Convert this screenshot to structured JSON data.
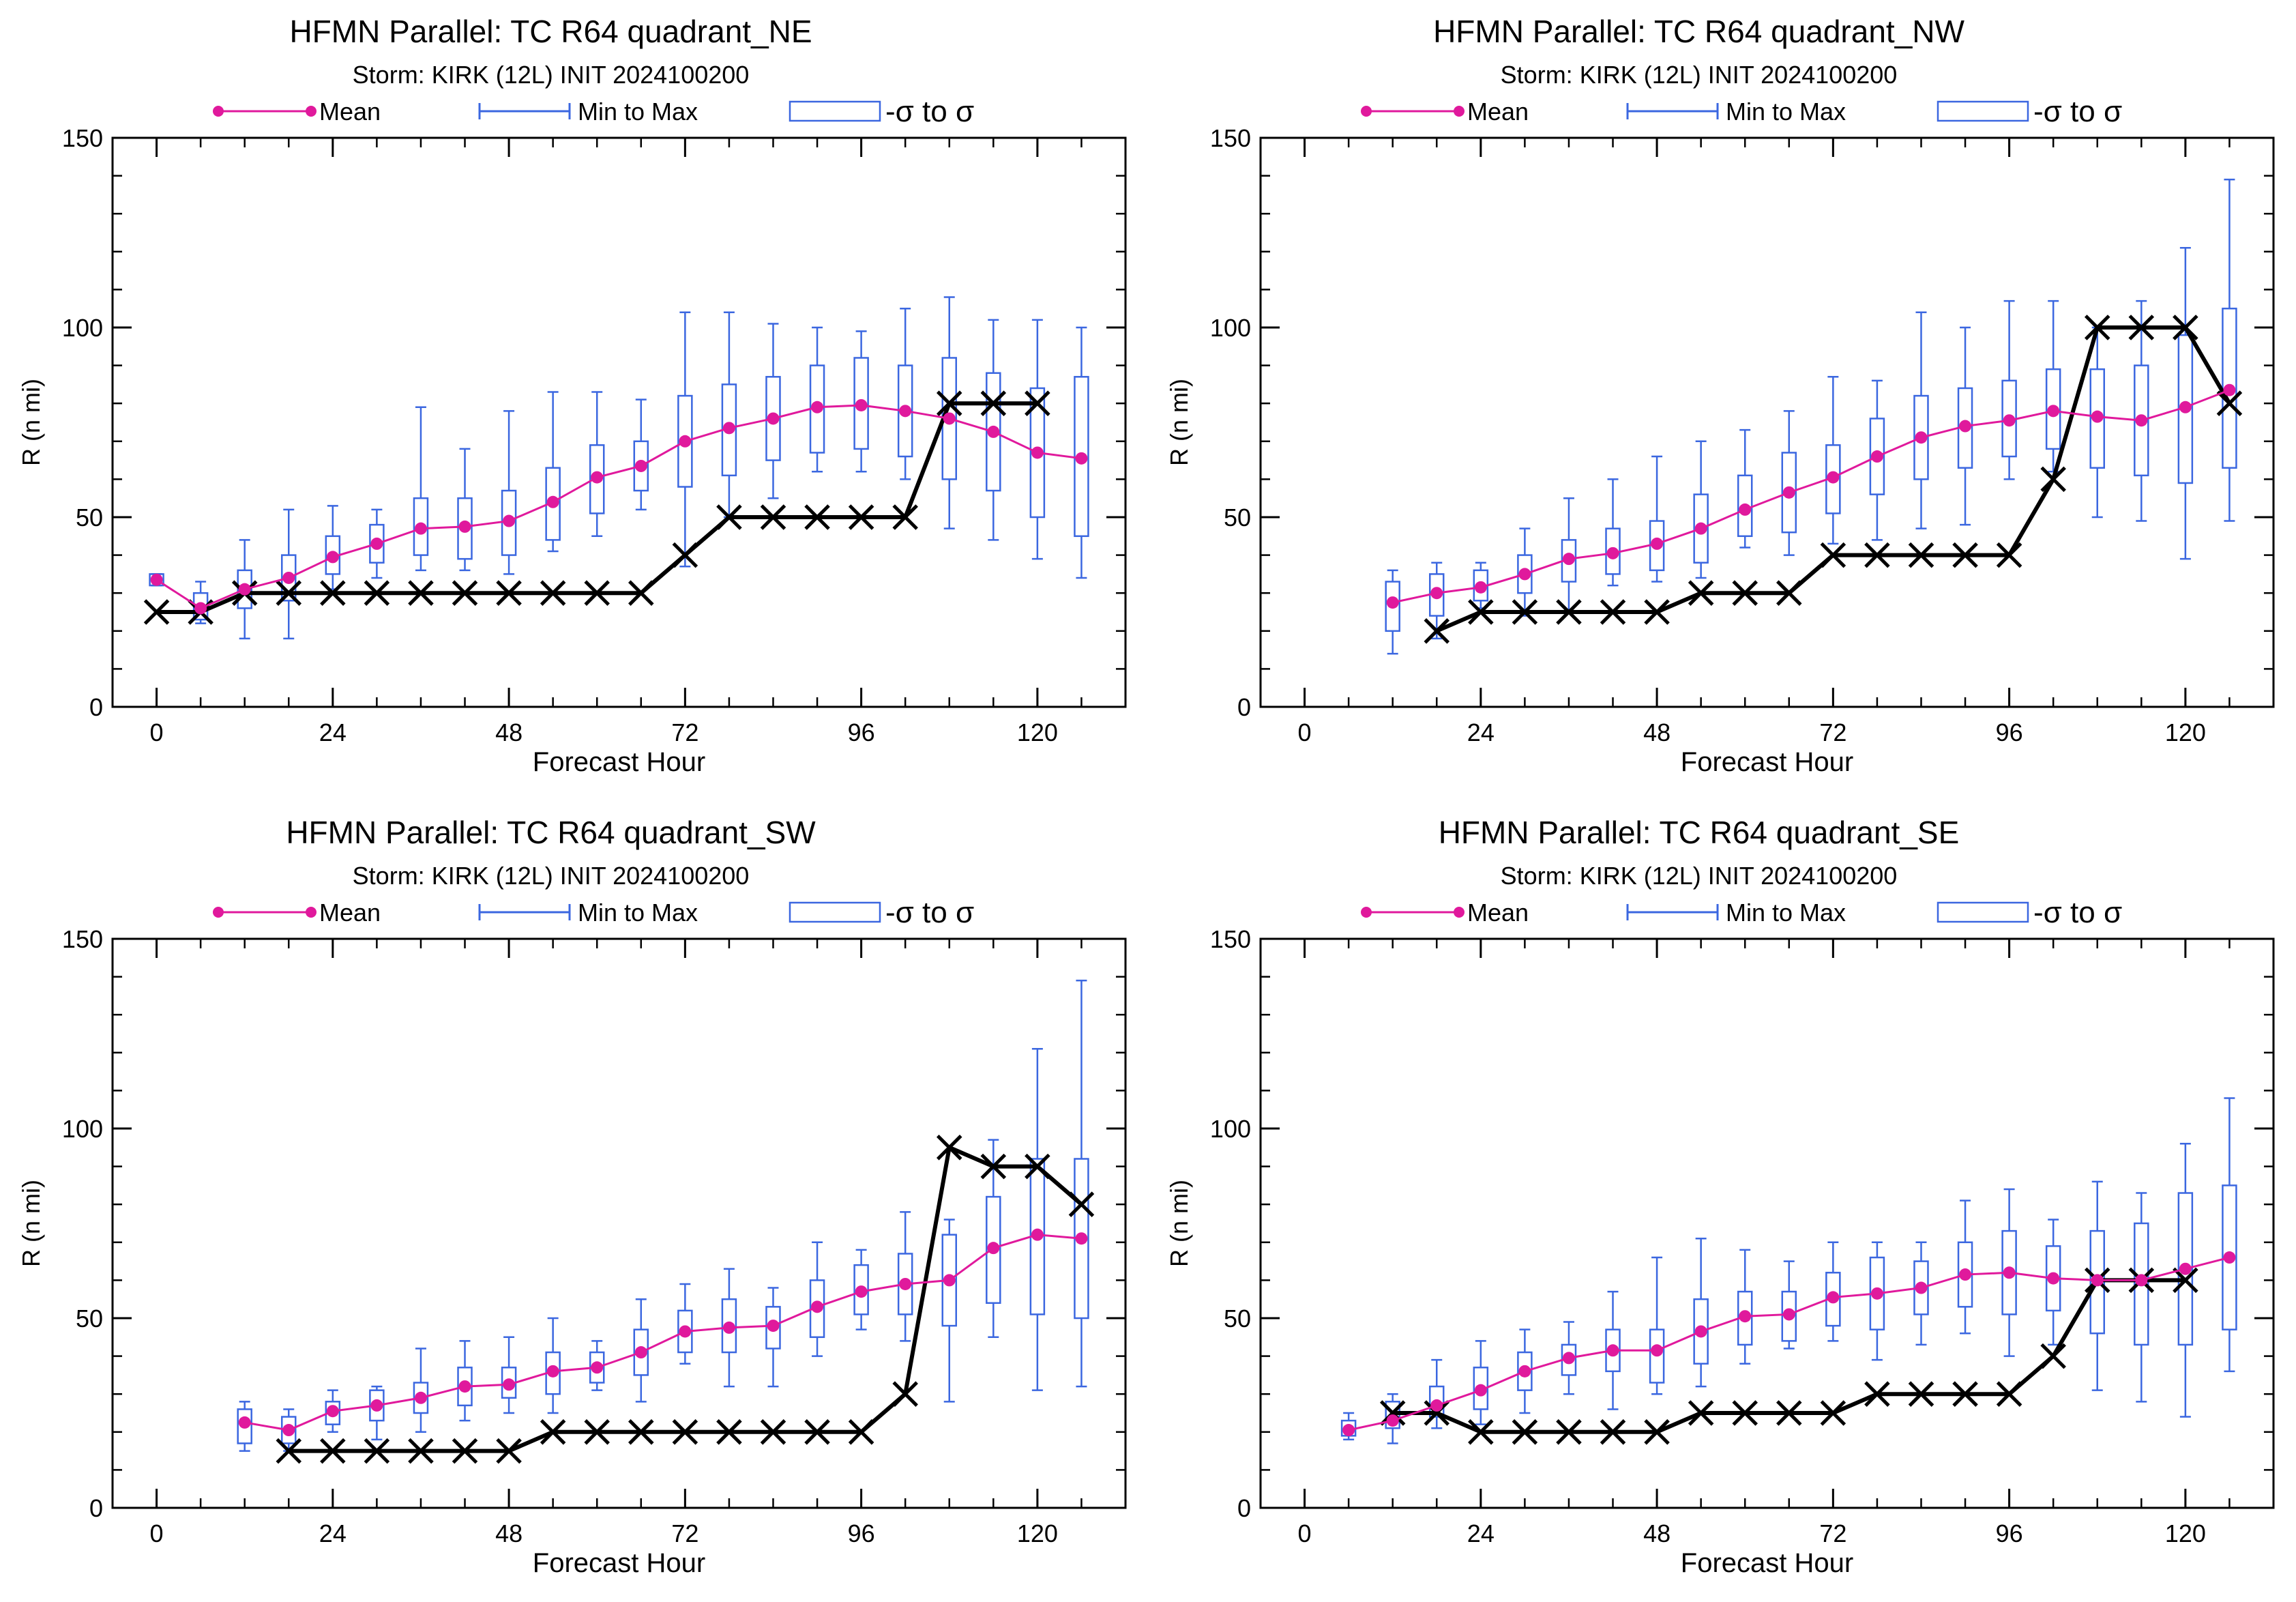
{
  "colors": {
    "mean": "#e0199c",
    "minmax": "#3b67e0",
    "box": "#3b67e0",
    "best_track": "#000000",
    "axis": "#000000",
    "background": "#ffffff"
  },
  "legend": {
    "mean": "Mean",
    "minmax": "Min to Max",
    "sigma": "-σ to σ"
  },
  "chart_data": [
    {
      "type": "box-line",
      "title": "HFMN Parallel: TC  R64 quadrant_NE",
      "subtitle": "Storm: KIRK (12L) INIT 2024100200",
      "xlabel": "Forecast Hour",
      "ylabel": "R (n mi)",
      "xlim": [
        -6,
        132
      ],
      "ylim": [
        0,
        150
      ],
      "xticks": [
        0,
        24,
        48,
        72,
        96,
        120
      ],
      "yticks": [
        0,
        50,
        100,
        150
      ],
      "legend_position": "top",
      "boxes": [
        {
          "x": 0,
          "min": 32,
          "q1": 32,
          "q3": 35,
          "max": 35
        },
        {
          "x": 6,
          "min": 22,
          "q1": 23,
          "q3": 30,
          "max": 33
        },
        {
          "x": 12,
          "min": 18,
          "q1": 26,
          "q3": 36,
          "max": 44
        },
        {
          "x": 18,
          "min": 18,
          "q1": 28,
          "q3": 40,
          "max": 52
        },
        {
          "x": 24,
          "min": 31,
          "q1": 35,
          "q3": 45,
          "max": 53
        },
        {
          "x": 30,
          "min": 34,
          "q1": 38,
          "q3": 48,
          "max": 52
        },
        {
          "x": 36,
          "min": 36,
          "q1": 40,
          "q3": 55,
          "max": 79
        },
        {
          "x": 42,
          "min": 36,
          "q1": 39,
          "q3": 55,
          "max": 68
        },
        {
          "x": 48,
          "min": 35,
          "q1": 40,
          "q3": 57,
          "max": 78
        },
        {
          "x": 54,
          "min": 41,
          "q1": 44,
          "q3": 63,
          "max": 83
        },
        {
          "x": 60,
          "min": 45,
          "q1": 51,
          "q3": 69,
          "max": 83
        },
        {
          "x": 66,
          "min": 52,
          "q1": 57,
          "q3": 70,
          "max": 81
        },
        {
          "x": 72,
          "min": 37,
          "q1": 58,
          "q3": 82,
          "max": 104
        },
        {
          "x": 78,
          "min": 50,
          "q1": 61,
          "q3": 85,
          "max": 104
        },
        {
          "x": 84,
          "min": 55,
          "q1": 65,
          "q3": 87,
          "max": 101
        },
        {
          "x": 90,
          "min": 62,
          "q1": 67,
          "q3": 90,
          "max": 100
        },
        {
          "x": 96,
          "min": 62,
          "q1": 68,
          "q3": 92,
          "max": 99
        },
        {
          "x": 102,
          "min": 60,
          "q1": 66,
          "q3": 90,
          "max": 105
        },
        {
          "x": 108,
          "min": 47,
          "q1": 60,
          "q3": 92,
          "max": 108
        },
        {
          "x": 114,
          "min": 44,
          "q1": 57,
          "q3": 88,
          "max": 102
        },
        {
          "x": 120,
          "min": 39,
          "q1": 50,
          "q3": 84,
          "max": 102
        },
        {
          "x": 126,
          "min": 34,
          "q1": 45,
          "q3": 87,
          "max": 100
        }
      ],
      "mean": {
        "x": [
          0,
          6,
          12,
          18,
          24,
          30,
          36,
          42,
          48,
          54,
          60,
          66,
          72,
          78,
          84,
          90,
          96,
          102,
          108,
          114,
          120,
          126
        ],
        "y": [
          33.5,
          26,
          31,
          34,
          39.5,
          43,
          47,
          47.5,
          49,
          54,
          60.5,
          63.5,
          70,
          73.5,
          76,
          79,
          79.5,
          78,
          76,
          72.5,
          67,
          65.5
        ]
      },
      "best_track": {
        "x": [
          0,
          6,
          12,
          18,
          24,
          30,
          36,
          42,
          48,
          54,
          60,
          66,
          72,
          78,
          84,
          90,
          96,
          102,
          108,
          114,
          120
        ],
        "y": [
          25,
          25,
          30,
          30,
          30,
          30,
          30,
          30,
          30,
          30,
          30,
          30,
          40,
          50,
          50,
          50,
          50,
          50,
          80,
          80,
          80
        ]
      }
    },
    {
      "type": "box-line",
      "title": "HFMN Parallel: TC  R64 quadrant_NW",
      "subtitle": "Storm: KIRK (12L) INIT 2024100200",
      "xlabel": "Forecast Hour",
      "ylabel": "R (n mi)",
      "xlim": [
        -6,
        132
      ],
      "ylim": [
        0,
        150
      ],
      "xticks": [
        0,
        24,
        48,
        72,
        96,
        120
      ],
      "yticks": [
        0,
        50,
        100,
        150
      ],
      "legend_position": "top",
      "boxes": [
        {
          "x": 12,
          "min": 14,
          "q1": 20,
          "q3": 33,
          "max": 36
        },
        {
          "x": 18,
          "min": 18,
          "q1": 24,
          "q3": 35,
          "max": 38
        },
        {
          "x": 24,
          "min": 26,
          "q1": 28,
          "q3": 36,
          "max": 38
        },
        {
          "x": 30,
          "min": 24,
          "q1": 30,
          "q3": 40,
          "max": 47
        },
        {
          "x": 36,
          "min": 25,
          "q1": 33,
          "q3": 44,
          "max": 55
        },
        {
          "x": 42,
          "min": 32,
          "q1": 35,
          "q3": 47,
          "max": 60
        },
        {
          "x": 48,
          "min": 33,
          "q1": 36,
          "q3": 49,
          "max": 66
        },
        {
          "x": 54,
          "min": 34,
          "q1": 38,
          "q3": 56,
          "max": 70
        },
        {
          "x": 60,
          "min": 42,
          "q1": 45,
          "q3": 61,
          "max": 73
        },
        {
          "x": 66,
          "min": 40,
          "q1": 46,
          "q3": 67,
          "max": 78
        },
        {
          "x": 72,
          "min": 43,
          "q1": 51,
          "q3": 69,
          "max": 87
        },
        {
          "x": 78,
          "min": 44,
          "q1": 56,
          "q3": 76,
          "max": 86
        },
        {
          "x": 84,
          "min": 47,
          "q1": 60,
          "q3": 82,
          "max": 104
        },
        {
          "x": 90,
          "min": 48,
          "q1": 63,
          "q3": 84,
          "max": 100
        },
        {
          "x": 96,
          "min": 60,
          "q1": 66,
          "q3": 86,
          "max": 107
        },
        {
          "x": 102,
          "min": 62,
          "q1": 68,
          "q3": 89,
          "max": 107
        },
        {
          "x": 108,
          "min": 50,
          "q1": 63,
          "q3": 89,
          "max": 100
        },
        {
          "x": 114,
          "min": 49,
          "q1": 61,
          "q3": 90,
          "max": 107
        },
        {
          "x": 120,
          "min": 39,
          "q1": 59,
          "q3": 98,
          "max": 121
        },
        {
          "x": 126,
          "min": 49,
          "q1": 63,
          "q3": 105,
          "max": 139
        }
      ],
      "mean": {
        "x": [
          12,
          18,
          24,
          30,
          36,
          42,
          48,
          54,
          60,
          66,
          72,
          78,
          84,
          90,
          96,
          102,
          108,
          114,
          120,
          126
        ],
        "y": [
          27.5,
          30,
          31.5,
          35,
          39,
          40.5,
          43,
          47,
          52,
          56.5,
          60.5,
          66,
          71,
          74,
          75.5,
          78,
          76.5,
          75.5,
          79,
          83.5
        ]
      },
      "best_track": {
        "x": [
          18,
          24,
          30,
          36,
          42,
          48,
          54,
          60,
          66,
          72,
          78,
          84,
          90,
          96,
          102,
          108,
          114,
          120,
          126
        ],
        "y": [
          20,
          25,
          25,
          25,
          25,
          25,
          30,
          30,
          30,
          40,
          40,
          40,
          40,
          40,
          60,
          100,
          100,
          100,
          80
        ]
      }
    },
    {
      "type": "box-line",
      "title": "HFMN Parallel: TC  R64 quadrant_SW",
      "subtitle": "Storm: KIRK (12L) INIT 2024100200",
      "xlabel": "Forecast Hour",
      "ylabel": "R (n mi)",
      "xlim": [
        -6,
        132
      ],
      "ylim": [
        0,
        150
      ],
      "xticks": [
        0,
        24,
        48,
        72,
        96,
        120
      ],
      "yticks": [
        0,
        50,
        100,
        150
      ],
      "legend_position": "top",
      "boxes": [
        {
          "x": 12,
          "min": 15,
          "q1": 17,
          "q3": 26,
          "max": 28
        },
        {
          "x": 18,
          "min": 15,
          "q1": 17,
          "q3": 24,
          "max": 26
        },
        {
          "x": 24,
          "min": 20,
          "q1": 22,
          "q3": 28,
          "max": 31
        },
        {
          "x": 30,
          "min": 18,
          "q1": 23,
          "q3": 31,
          "max": 32
        },
        {
          "x": 36,
          "min": 20,
          "q1": 25,
          "q3": 33,
          "max": 42
        },
        {
          "x": 42,
          "min": 23,
          "q1": 27,
          "q3": 37,
          "max": 44
        },
        {
          "x": 48,
          "min": 25,
          "q1": 29,
          "q3": 37,
          "max": 45
        },
        {
          "x": 54,
          "min": 25,
          "q1": 30,
          "q3": 41,
          "max": 50
        },
        {
          "x": 60,
          "min": 31,
          "q1": 33,
          "q3": 41,
          "max": 44
        },
        {
          "x": 66,
          "min": 28,
          "q1": 35,
          "q3": 47,
          "max": 55
        },
        {
          "x": 72,
          "min": 38,
          "q1": 41,
          "q3": 52,
          "max": 59
        },
        {
          "x": 78,
          "min": 32,
          "q1": 41,
          "q3": 55,
          "max": 63
        },
        {
          "x": 84,
          "min": 32,
          "q1": 42,
          "q3": 53,
          "max": 58
        },
        {
          "x": 90,
          "min": 40,
          "q1": 45,
          "q3": 60,
          "max": 70
        },
        {
          "x": 96,
          "min": 47,
          "q1": 51,
          "q3": 64,
          "max": 68
        },
        {
          "x": 102,
          "min": 44,
          "q1": 51,
          "q3": 67,
          "max": 78
        },
        {
          "x": 108,
          "min": 28,
          "q1": 48,
          "q3": 72,
          "max": 76
        },
        {
          "x": 114,
          "min": 45,
          "q1": 54,
          "q3": 82,
          "max": 97
        },
        {
          "x": 120,
          "min": 31,
          "q1": 51,
          "q3": 92,
          "max": 121
        },
        {
          "x": 126,
          "min": 32,
          "q1": 50,
          "q3": 92,
          "max": 139
        }
      ],
      "mean": {
        "x": [
          12,
          18,
          24,
          30,
          36,
          42,
          48,
          54,
          60,
          66,
          72,
          78,
          84,
          90,
          96,
          102,
          108,
          114,
          120,
          126
        ],
        "y": [
          22.5,
          20.5,
          25.5,
          27,
          29,
          32,
          32.5,
          36,
          37,
          41,
          46.5,
          47.5,
          48,
          53,
          57,
          59,
          60,
          68.5,
          72,
          71
        ]
      },
      "best_track": {
        "x": [
          18,
          24,
          30,
          36,
          42,
          48,
          54,
          60,
          66,
          72,
          78,
          84,
          90,
          96,
          102,
          108,
          114,
          120,
          126
        ],
        "y": [
          15,
          15,
          15,
          15,
          15,
          15,
          20,
          20,
          20,
          20,
          20,
          20,
          20,
          20,
          30,
          95,
          90,
          90,
          80
        ]
      }
    },
    {
      "type": "box-line",
      "title": "HFMN Parallel: TC  R64 quadrant_SE",
      "subtitle": "Storm: KIRK (12L) INIT 2024100200",
      "xlabel": "Forecast Hour",
      "ylabel": "R (n mi)",
      "xlim": [
        -6,
        132
      ],
      "ylim": [
        0,
        150
      ],
      "xticks": [
        0,
        24,
        48,
        72,
        96,
        120
      ],
      "yticks": [
        0,
        50,
        100,
        150
      ],
      "legend_position": "top",
      "boxes": [
        {
          "x": 6,
          "min": 18,
          "q1": 19,
          "q3": 23,
          "max": 25
        },
        {
          "x": 12,
          "min": 17,
          "q1": 21,
          "q3": 28,
          "max": 30
        },
        {
          "x": 18,
          "min": 21,
          "q1": 24,
          "q3": 32,
          "max": 39
        },
        {
          "x": 24,
          "min": 22,
          "q1": 26,
          "q3": 37,
          "max": 44
        },
        {
          "x": 30,
          "min": 25,
          "q1": 31,
          "q3": 41,
          "max": 47
        },
        {
          "x": 36,
          "min": 30,
          "q1": 35,
          "q3": 43,
          "max": 49
        },
        {
          "x": 42,
          "min": 26,
          "q1": 36,
          "q3": 47,
          "max": 57
        },
        {
          "x": 48,
          "min": 30,
          "q1": 33,
          "q3": 47,
          "max": 66
        },
        {
          "x": 54,
          "min": 32,
          "q1": 38,
          "q3": 55,
          "max": 71
        },
        {
          "x": 60,
          "min": 38,
          "q1": 43,
          "q3": 57,
          "max": 68
        },
        {
          "x": 66,
          "min": 42,
          "q1": 44,
          "q3": 57,
          "max": 65
        },
        {
          "x": 72,
          "min": 44,
          "q1": 48,
          "q3": 62,
          "max": 70
        },
        {
          "x": 78,
          "min": 39,
          "q1": 47,
          "q3": 66,
          "max": 70
        },
        {
          "x": 84,
          "min": 43,
          "q1": 51,
          "q3": 65,
          "max": 70
        },
        {
          "x": 90,
          "min": 46,
          "q1": 53,
          "q3": 70,
          "max": 81
        },
        {
          "x": 96,
          "min": 40,
          "q1": 51,
          "q3": 73,
          "max": 84
        },
        {
          "x": 102,
          "min": 43,
          "q1": 52,
          "q3": 69,
          "max": 76
        },
        {
          "x": 108,
          "min": 31,
          "q1": 46,
          "q3": 73,
          "max": 86
        },
        {
          "x": 114,
          "min": 28,
          "q1": 43,
          "q3": 75,
          "max": 83
        },
        {
          "x": 120,
          "min": 24,
          "q1": 43,
          "q3": 83,
          "max": 96
        },
        {
          "x": 126,
          "min": 36,
          "q1": 47,
          "q3": 85,
          "max": 108
        }
      ],
      "mean": {
        "x": [
          6,
          12,
          18,
          24,
          30,
          36,
          42,
          48,
          54,
          60,
          66,
          72,
          78,
          84,
          90,
          96,
          102,
          108,
          114,
          120,
          126
        ],
        "y": [
          20.5,
          23,
          27,
          31,
          36,
          39.5,
          41.5,
          41.5,
          46.5,
          50.5,
          51,
          55.5,
          56.5,
          58,
          61.5,
          62,
          60.5,
          60,
          60,
          63,
          66
        ]
      },
      "best_track": {
        "x": [
          12,
          18,
          24,
          30,
          36,
          42,
          48,
          54,
          60,
          66,
          72,
          78,
          84,
          90,
          96,
          102,
          108,
          114,
          120
        ],
        "y": [
          25,
          25,
          20,
          20,
          20,
          20,
          20,
          25,
          25,
          25,
          25,
          30,
          30,
          30,
          30,
          40,
          60,
          60,
          60
        ]
      }
    }
  ]
}
